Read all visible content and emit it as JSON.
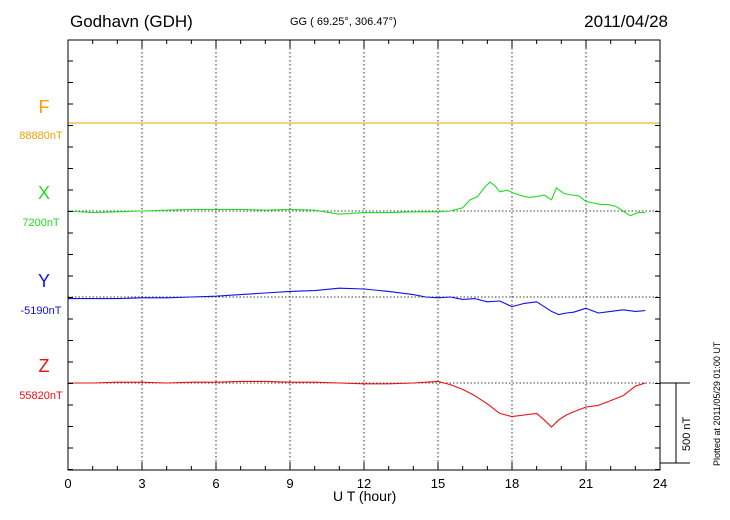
{
  "header": {
    "station": "Godhavn (GDH)",
    "coords": "GG ( 69.25°, 306.47°)",
    "date": "2011/04/28"
  },
  "footer": {
    "plotted": "Plotted at 2011/05/29 01:00 UT"
  },
  "chart_data": {
    "type": "line",
    "xlabel": "U T (hour)",
    "xlim": [
      0,
      24
    ],
    "xticks": [
      0,
      3,
      6,
      9,
      12,
      15,
      18,
      21,
      24
    ],
    "grid": true,
    "scale_bar": {
      "label": "500 nT",
      "value_nT": 500
    },
    "series": [
      {
        "name": "F",
        "baseline_label": "88880nT",
        "color": "#f5a000",
        "x": [
          0,
          24
        ],
        "values": [
          0,
          0
        ]
      },
      {
        "name": "X",
        "baseline_label": "7200nT",
        "color": "#22dd22",
        "x": [
          0,
          1,
          2,
          3,
          4,
          5,
          6,
          7,
          8,
          9,
          10,
          11,
          12,
          13,
          14,
          15,
          15.5,
          16,
          16.3,
          16.6,
          16.9,
          17.1,
          17.3,
          17.5,
          17.8,
          18.1,
          18.4,
          18.7,
          19.0,
          19.3,
          19.6,
          19.8,
          20.1,
          20.4,
          20.7,
          21.0,
          21.3,
          21.6,
          21.9,
          22.2,
          22.5,
          22.8,
          23.1,
          23.4
        ],
        "values": [
          0,
          -10,
          -5,
          0,
          5,
          10,
          10,
          10,
          5,
          10,
          5,
          -20,
          -10,
          -10,
          -5,
          -5,
          0,
          20,
          70,
          90,
          150,
          180,
          160,
          120,
          130,
          110,
          95,
          85,
          90,
          100,
          70,
          145,
          110,
          100,
          95,
          60,
          50,
          40,
          40,
          30,
          0,
          -30,
          -10,
          -10
        ]
      },
      {
        "name": "Y",
        "baseline_label": "-5190nT",
        "color": "#1010ee",
        "x": [
          0,
          1,
          2,
          3,
          4,
          5,
          6,
          7,
          8,
          9,
          10,
          11,
          12,
          13,
          14,
          14.5,
          15,
          15.5,
          16,
          16.5,
          17,
          17.5,
          18,
          18.5,
          19,
          19.3,
          19.6,
          19.9,
          20.2,
          20.5,
          21,
          21.5,
          22,
          22.5,
          23,
          23.4
        ],
        "values": [
          -10,
          -10,
          -10,
          -5,
          -5,
          0,
          5,
          15,
          25,
          35,
          40,
          55,
          50,
          35,
          15,
          0,
          -5,
          0,
          -15,
          -10,
          -30,
          -25,
          -60,
          -40,
          -30,
          -60,
          -90,
          -110,
          -100,
          -95,
          -70,
          -100,
          -90,
          -80,
          -90,
          -85
        ]
      },
      {
        "name": "Z",
        "baseline_label": "55820nT",
        "color": "#ee1010",
        "x": [
          0,
          1,
          2,
          3,
          4,
          5,
          6,
          7,
          8,
          9,
          10,
          11,
          12,
          13,
          14,
          15,
          15.5,
          16,
          16.5,
          17,
          17.5,
          18,
          18.5,
          19,
          19.3,
          19.6,
          19.9,
          20.2,
          20.5,
          21,
          21.5,
          22,
          22.5,
          23,
          23.4
        ],
        "values": [
          0,
          0,
          5,
          5,
          0,
          5,
          5,
          10,
          10,
          5,
          5,
          0,
          -5,
          -5,
          0,
          10,
          -10,
          -40,
          -80,
          -130,
          -190,
          -210,
          -200,
          -190,
          -230,
          -275,
          -230,
          -200,
          -180,
          -150,
          -140,
          -110,
          -80,
          -20,
          0
        ]
      }
    ]
  }
}
